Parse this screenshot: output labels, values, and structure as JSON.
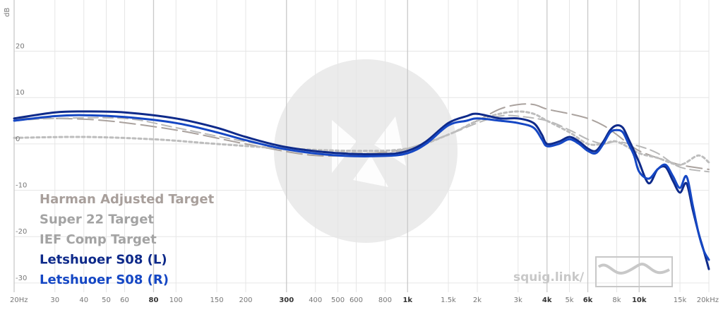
{
  "chart_data": {
    "type": "line",
    "title": "",
    "xlabel": "",
    "ylabel": "dB",
    "x_scale": "log",
    "xlim": [
      20,
      20000
    ],
    "ylim": [
      -32,
      28
    ],
    "grid": true,
    "legend_placement": "bottom-left",
    "y_ticks": [
      20,
      10,
      0,
      -10,
      -20,
      -30
    ],
    "x_ticks": [
      {
        "value": 20,
        "label": "20Hz",
        "bold": false,
        "major": true
      },
      {
        "value": 30,
        "label": "30",
        "bold": false,
        "major": false
      },
      {
        "value": 40,
        "label": "40",
        "bold": false,
        "major": false
      },
      {
        "value": 50,
        "label": "50",
        "bold": false,
        "major": false
      },
      {
        "value": 60,
        "label": "60",
        "bold": false,
        "major": false
      },
      {
        "value": 80,
        "label": "80",
        "bold": true,
        "major": true
      },
      {
        "value": 100,
        "label": "100",
        "bold": false,
        "major": false
      },
      {
        "value": 150,
        "label": "150",
        "bold": false,
        "major": false
      },
      {
        "value": 200,
        "label": "200",
        "bold": false,
        "major": false
      },
      {
        "value": 300,
        "label": "300",
        "bold": true,
        "major": true
      },
      {
        "value": 400,
        "label": "400",
        "bold": false,
        "major": false
      },
      {
        "value": 500,
        "label": "500",
        "bold": false,
        "major": false
      },
      {
        "value": 600,
        "label": "600",
        "bold": false,
        "major": false
      },
      {
        "value": 800,
        "label": "800",
        "bold": false,
        "major": false
      },
      {
        "value": 1000,
        "label": "1k",
        "bold": true,
        "major": true
      },
      {
        "value": 1500,
        "label": "1.5k",
        "bold": false,
        "major": false
      },
      {
        "value": 2000,
        "label": "2k",
        "bold": false,
        "major": false
      },
      {
        "value": 3000,
        "label": "3k",
        "bold": false,
        "major": false
      },
      {
        "value": 4000,
        "label": "4k",
        "bold": true,
        "major": true
      },
      {
        "value": 5000,
        "label": "5k",
        "bold": false,
        "major": false
      },
      {
        "value": 6000,
        "label": "6k",
        "bold": true,
        "major": true
      },
      {
        "value": 8000,
        "label": "8k",
        "bold": false,
        "major": false
      },
      {
        "value": 10000,
        "label": "10k",
        "bold": true,
        "major": true
      },
      {
        "value": 15000,
        "label": "15k",
        "bold": false,
        "major": false
      },
      {
        "value": 20000,
        "label": "20kHz",
        "bold": false,
        "major": false
      }
    ],
    "series": [
      {
        "name": "Harman Adjusted Target",
        "color": "#aaa29e",
        "style": "dashed-long",
        "x": [
          20,
          30,
          50,
          100,
          200,
          400,
          700,
          1000,
          1500,
          2000,
          2500,
          3000,
          3500,
          4000,
          5000,
          6000,
          7000,
          8000,
          9000,
          10000,
          12000,
          15000,
          20000
        ],
        "y": [
          5.5,
          5.5,
          5,
          3,
          0,
          -2.5,
          -2,
          -1,
          2,
          5,
          7.5,
          8.5,
          8.5,
          7.5,
          6.5,
          5.5,
          4,
          2,
          0,
          -1.5,
          -3,
          -4.5,
          -5.5
        ]
      },
      {
        "name": "Super 22 Target",
        "color": "#b8b8b8",
        "style": "dashed-medium",
        "x": [
          20,
          30,
          60,
          100,
          200,
          400,
          800,
          1000,
          1500,
          2000,
          2500,
          3000,
          4000,
          5000,
          6000,
          7000,
          8000,
          10000,
          12000,
          15000,
          20000
        ],
        "y": [
          5,
          5.5,
          5.5,
          3.5,
          0.5,
          -1.5,
          -2,
          -1,
          2,
          4.5,
          6,
          6,
          5,
          3,
          1,
          0,
          0.5,
          -0.5,
          -2,
          -5,
          -6
        ]
      },
      {
        "name": "IEF Comp Target",
        "color": "#bdbdbd",
        "style": "dotted",
        "x": [
          20,
          40,
          80,
          150,
          300,
          600,
          1000,
          1500,
          2000,
          2500,
          3000,
          3500,
          4000,
          5000,
          6000,
          7000,
          8000,
          10000,
          12000,
          15000,
          18000,
          20000
        ],
        "y": [
          1.3,
          1.5,
          1,
          0,
          -1,
          -1.5,
          -1,
          2,
          5,
          6.5,
          7,
          6.5,
          5,
          2.5,
          0,
          0,
          0.5,
          -2,
          -3,
          -4.5,
          -2.5,
          -4
        ]
      },
      {
        "name": "Letshuoer S08 (L)",
        "color": "#0e2a8a",
        "style": "solid",
        "x": [
          20,
          30,
          40,
          60,
          100,
          150,
          200,
          300,
          500,
          800,
          1000,
          1200,
          1500,
          1800,
          2000,
          2500,
          3000,
          3500,
          3800,
          4000,
          4500,
          5000,
          5500,
          6000,
          6500,
          7000,
          7500,
          8000,
          8500,
          9000,
          9500,
          10000,
          11000,
          12000,
          13000,
          14000,
          15000,
          16000,
          17000,
          18000,
          19000,
          20000
        ],
        "y": [
          5.5,
          6.8,
          7,
          6.8,
          5.5,
          3.5,
          1.5,
          -0.7,
          -2,
          -2.2,
          -1.5,
          0.5,
          4.5,
          6,
          6.5,
          5.5,
          5.5,
          4.5,
          2,
          0,
          0.5,
          1.5,
          0.5,
          -1,
          -1.5,
          0.5,
          3,
          4,
          3.5,
          1,
          -1.5,
          -4,
          -8.5,
          -5.5,
          -5,
          -8,
          -10.5,
          -8.5,
          -14,
          -19,
          -23,
          -27
        ]
      },
      {
        "name": "Letshuoer S08 (R)",
        "color": "#1547c4",
        "style": "solid",
        "x": [
          20,
          30,
          40,
          60,
          100,
          150,
          200,
          300,
          500,
          800,
          1000,
          1200,
          1500,
          1800,
          2000,
          2500,
          3000,
          3500,
          3800,
          4000,
          4500,
          5000,
          5500,
          6000,
          6500,
          7000,
          7500,
          8000,
          8500,
          9000,
          9500,
          10000,
          11000,
          12000,
          13000,
          14000,
          15000,
          16000,
          17000,
          18000,
          19000,
          20000
        ],
        "y": [
          5,
          6,
          6.2,
          5.8,
          4.5,
          2.5,
          0.8,
          -1.2,
          -2.5,
          -2.6,
          -2,
          0,
          4,
          5,
          5.5,
          5,
          4.5,
          3.5,
          1,
          -0.5,
          0,
          1,
          0,
          -1.5,
          -2,
          0,
          2.5,
          3,
          2.5,
          0,
          -2.5,
          -6,
          -7.5,
          -5.5,
          -4.5,
          -7,
          -9.5,
          -7,
          -13,
          -19,
          -23,
          -25
        ]
      }
    ]
  },
  "watermark": {
    "text": "squig.link/"
  }
}
